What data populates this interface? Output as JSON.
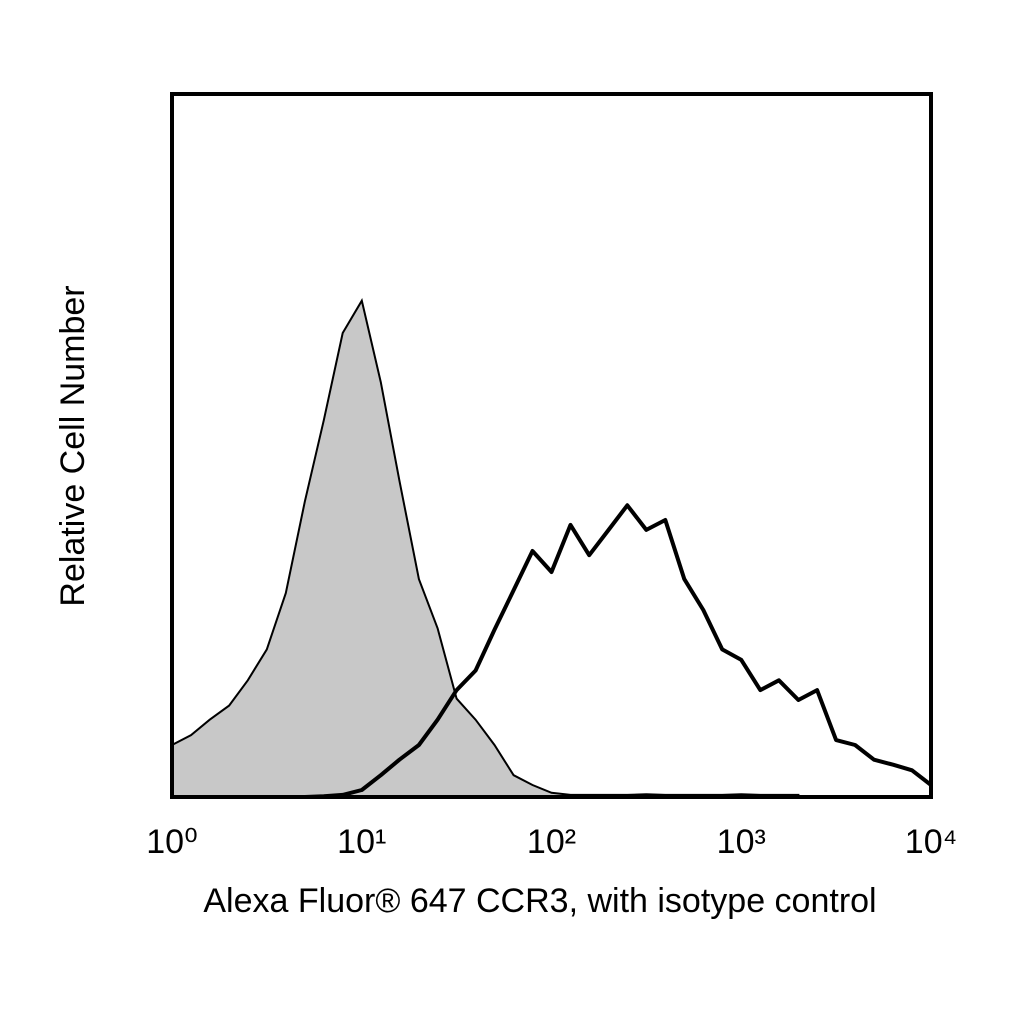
{
  "chart_data": {
    "type": "histogram-overlay",
    "x_label": "Alexa Fluor® 647 CCR3, with isotype control",
    "y_label": "Relative Cell Number",
    "x_scale": "log",
    "xlim": [
      1,
      10000
    ],
    "ylim": [
      0,
      100
    ],
    "xticks": [
      {
        "value": 1,
        "label": "10⁰"
      },
      {
        "value": 10,
        "label": "10¹"
      },
      {
        "value": 100,
        "label": "10²"
      },
      {
        "value": 1000,
        "label": "10³"
      },
      {
        "value": 10000,
        "label": "10⁴"
      }
    ],
    "x": [
      1,
      1.26,
      1.58,
      2,
      2.51,
      3.16,
      3.98,
      5.01,
      6.31,
      7.94,
      10,
      12.6,
      15.8,
      20,
      25.1,
      31.6,
      39.8,
      50.1,
      63.1,
      79.4,
      100,
      126,
      158,
      200,
      251,
      316,
      398,
      501,
      631,
      794,
      1000,
      1260,
      1580,
      2000,
      2510,
      3160,
      3980,
      5010,
      6310,
      7940,
      10000
    ],
    "series": [
      {
        "fill": "#c8c8c8",
        "color": "#000000",
        "values": [
          7.4,
          8.8,
          11,
          13,
          16.6,
          21,
          29,
          42,
          53.6,
          66,
          70.6,
          59,
          45,
          31,
          24,
          14,
          11,
          7.4,
          3.1,
          1.7,
          0.6,
          0.3,
          0.3,
          0.3,
          0.3,
          0.4,
          0.3,
          0.3,
          0.3,
          0.3,
          0.4,
          0.3,
          0.3,
          0.3,
          null,
          null,
          null,
          null,
          null,
          null,
          null
        ]
      },
      {
        "color": "#000000",
        "values": [
          0,
          0,
          0,
          0,
          0,
          0,
          0,
          0,
          0.1,
          0.3,
          1,
          3.1,
          5.3,
          7.4,
          11,
          15.2,
          18,
          23.8,
          29.4,
          35,
          32,
          38.7,
          34.4,
          38,
          41.5,
          38,
          39.4,
          31,
          26.6,
          21,
          19.5,
          15.2,
          16.6,
          13.8,
          15.2,
          8.1,
          7.4,
          5.3,
          4.6,
          3.8,
          1.7
        ]
      }
    ]
  }
}
